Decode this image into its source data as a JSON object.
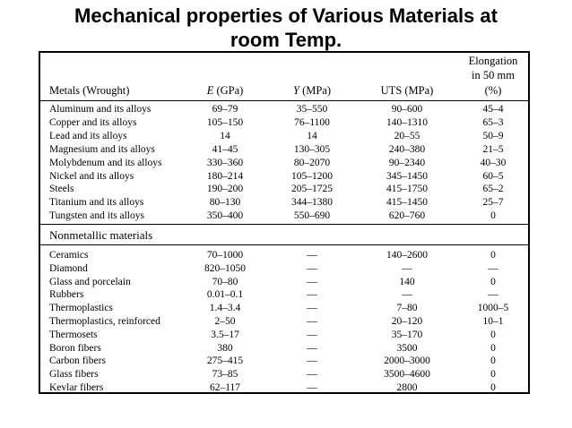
{
  "title": {
    "line1": "Mechanical properties of Various Materials at",
    "line2": "room Temp."
  },
  "header": {
    "metals": "Metals (Wrought)",
    "e_label": "E",
    "e_unit": " (GPa)",
    "y_label": "Y",
    "y_unit": " (MPa)",
    "uts": "UTS (MPa)",
    "elong_line1": "Elongation",
    "elong_line2": "in 50 mm",
    "elong_line3": "(%)"
  },
  "metals": [
    {
      "name": "Aluminum and its alloys",
      "e": "69–79",
      "y": "35–550",
      "uts": "90–600",
      "el": "45–4"
    },
    {
      "name": "Copper and its alloys",
      "e": "105–150",
      "y": "76–1100",
      "uts": "140–1310",
      "el": "65–3"
    },
    {
      "name": "Lead and its alloys",
      "e": "14",
      "y": "14",
      "uts": "20–55",
      "el": "50–9"
    },
    {
      "name": "Magnesium and its alloys",
      "e": "41–45",
      "y": "130–305",
      "uts": "240–380",
      "el": "21–5"
    },
    {
      "name": "Molybdenum and its alloys",
      "e": "330–360",
      "y": "80–2070",
      "uts": "90–2340",
      "el": "40–30"
    },
    {
      "name": "Nickel and its alloys",
      "e": "180–214",
      "y": "105–1200",
      "uts": "345–1450",
      "el": "60–5"
    },
    {
      "name": "Steels",
      "e": "190–200",
      "y": "205–1725",
      "uts": "415–1750",
      "el": "65–2"
    },
    {
      "name": "Titanium and its alloys",
      "e": "80–130",
      "y": "344–1380",
      "uts": "415–1450",
      "el": "25–7"
    },
    {
      "name": "Tungsten and its alloys",
      "e": "350–400",
      "y": "550–690",
      "uts": "620–760",
      "el": "0"
    }
  ],
  "nonmetal_heading": "Nonmetallic materials",
  "nonmetals": [
    {
      "name": "Ceramics",
      "e": "70–1000",
      "y": "—",
      "uts": "140–2600",
      "el": "0"
    },
    {
      "name": "Diamond",
      "e": "820–1050",
      "y": "—",
      "uts": "—",
      "el": "—"
    },
    {
      "name": "Glass and porcelain",
      "e": "70–80",
      "y": "—",
      "uts": "140",
      "el": "0"
    },
    {
      "name": "Rubbers",
      "e": "0.01–0.1",
      "y": "—",
      "uts": "—",
      "el": "—"
    },
    {
      "name": "Thermoplastics",
      "e": "1.4–3.4",
      "y": "—",
      "uts": "7–80",
      "el": "1000–5"
    },
    {
      "name": "Thermoplastics, reinforced",
      "e": "2–50",
      "y": "—",
      "uts": "20–120",
      "el": "10–1"
    },
    {
      "name": "Thermosets",
      "e": "3.5–17",
      "y": "—",
      "uts": "35–170",
      "el": "0"
    },
    {
      "name": "Boron fibers",
      "e": "380",
      "y": "—",
      "uts": "3500",
      "el": "0"
    },
    {
      "name": "Carbon fibers",
      "e": "275–415",
      "y": "—",
      "uts": "2000–3000",
      "el": "0"
    },
    {
      "name": "Glass fibers",
      "e": "73–85",
      "y": "—",
      "uts": "3500–4600",
      "el": "0"
    },
    {
      "name": "Kevlar fibers",
      "e": "62–117",
      "y": "—",
      "uts": "2800",
      "el": "0"
    }
  ]
}
